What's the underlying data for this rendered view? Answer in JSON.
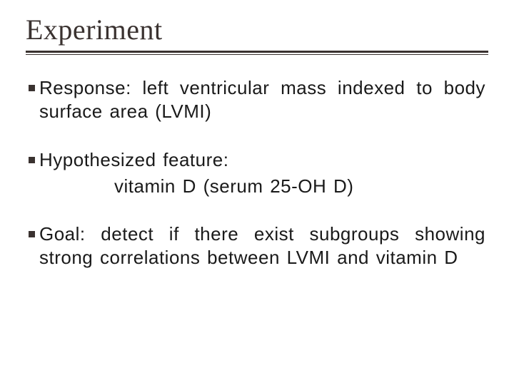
{
  "slide": {
    "title": "Experiment",
    "title_color": "#3a3230",
    "title_fontsize": 40,
    "rule_color": "#3a3230",
    "body_color": "#1a1a1a",
    "body_fontsize": 26,
    "bullet_color": "#3a3230",
    "background_color": "#ffffff",
    "bullets": [
      {
        "text": "Response: left ventricular mass indexed to body surface area (LVMI)",
        "subline": null
      },
      {
        "text": "Hypothesized feature:",
        "subline": "vitamin D (serum 25-OH D)"
      },
      {
        "text": "Goal: detect if there exist subgroups showing strong correlations between LVMI and vitamin D",
        "subline": null
      }
    ]
  }
}
